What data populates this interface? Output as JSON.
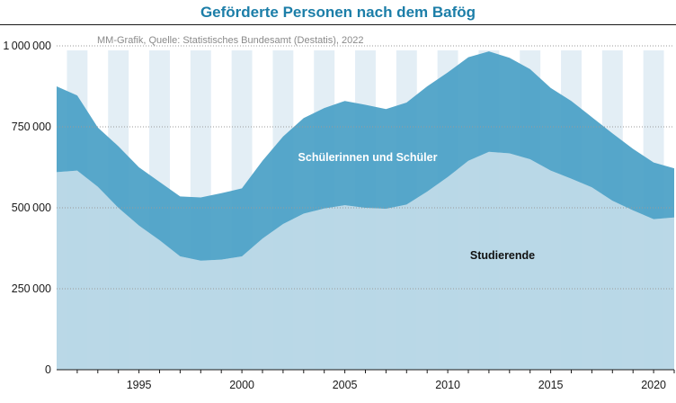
{
  "title": "Geförderte Personen nach dem Bafög",
  "source": "MM-Grafik, Quelle: Statistisches Bundesamt (Destatis), 2022",
  "colors": {
    "title": "#1c7ea8",
    "students": "#b6d6e6",
    "pupils": "#4aa0c6",
    "band": "#e3eef5",
    "label_light": "#ffffff",
    "label_dark": "#111111"
  },
  "chart_data": {
    "type": "area",
    "stacked": true,
    "title": "Geförderte Personen nach dem Bafög",
    "x": [
      1991,
      1992,
      1993,
      1994,
      1995,
      1996,
      1997,
      1998,
      1999,
      2000,
      2001,
      2002,
      2003,
      2004,
      2005,
      2006,
      2007,
      2008,
      2009,
      2010,
      2011,
      2012,
      2013,
      2014,
      2015,
      2016,
      2017,
      2018,
      2019,
      2020,
      2021
    ],
    "x_ticks": [
      "1995",
      "2000",
      "2005",
      "2010",
      "2015",
      "2020"
    ],
    "y_ticks": [
      "1000000",
      "750000",
      "500000",
      "250000",
      "0"
    ],
    "ylim": [
      0,
      1000000
    ],
    "xlim": [
      1991,
      2021
    ],
    "series": [
      {
        "name": "Studierende",
        "values": [
          610000,
          615000,
          565000,
          500000,
          445000,
          400000,
          350000,
          337000,
          340000,
          350000,
          405000,
          450000,
          482000,
          498000,
          508000,
          500000,
          497000,
          510000,
          550000,
          595000,
          645000,
          673000,
          668000,
          650000,
          615000,
          590000,
          563000,
          522000,
          492000,
          465000,
          470000
        ]
      },
      {
        "name": "Schülerinnen und Schüler",
        "values": [
          265000,
          232000,
          183000,
          190000,
          180000,
          180000,
          185000,
          195000,
          205000,
          210000,
          240000,
          270000,
          295000,
          310000,
          322000,
          318000,
          308000,
          315000,
          325000,
          323000,
          320000,
          310000,
          295000,
          278000,
          255000,
          240000,
          217000,
          208000,
          190000,
          175000,
          152000
        ]
      }
    ],
    "grid": "horizontal-dotted",
    "background_bands": "alternating-years"
  }
}
